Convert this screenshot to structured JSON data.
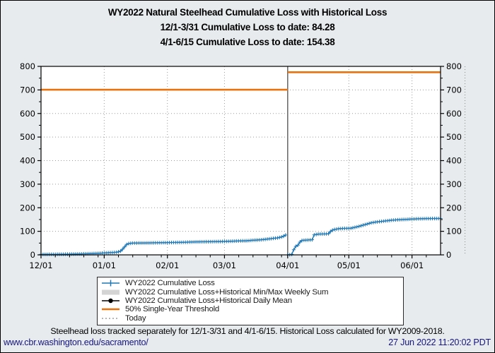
{
  "title": {
    "line1": "WY2022 Natural Steelhead Cumulative Loss with Historical Loss",
    "line2": "12/1-3/31 Cumulative Loss to date: 84.28",
    "line3": "4/1-6/15 Cumulative Loss to date: 154.38"
  },
  "legend": {
    "items": [
      {
        "label": "WY2022 Cumulative Loss",
        "marker": "line-plus-icon"
      },
      {
        "label": "WY2022 Cumulative Loss+Historical Min/Max Weekly Sum",
        "marker": "gray-patch-icon"
      },
      {
        "label": "WY2022 Cumulative Loss+Historical Daily Mean",
        "marker": "line-dot-icon"
      },
      {
        "label": "50% Single-Year Threshold",
        "marker": "orange-line-icon"
      },
      {
        "label": "Today",
        "marker": "dotted-line-icon"
      }
    ]
  },
  "footer": {
    "note": "Steelhead loss tracked separately for 12/1-3/31 and 4/1-6/15. Historical Loss calculated for WY2009-2018.",
    "link": "www.cbr.washington.edu/sacramento/",
    "timestamp": "27 Jun 2022 11:20:02 PDT"
  },
  "colors": {
    "series_blue": "#1f77b4",
    "threshold_orange": "#e8720e",
    "minmax_gray": "#d4d4d4",
    "daily_mean_black": "#000000",
    "today_gray": "#8a8a8a",
    "divider_gray": "#6e6e6e",
    "grid_gray": "#9a9a9a",
    "plot_background": "#ffffff",
    "figure_background": "#e7ebee",
    "link_navy": "#15157d"
  },
  "chart_data": {
    "type": "line",
    "title": "WY2022 Natural Steelhead Cumulative Loss with Historical Loss",
    "xlabel": "",
    "ylabel": "",
    "ylim": [
      0,
      800
    ],
    "yticks": [
      0,
      100,
      200,
      300,
      400,
      500,
      600,
      700,
      800
    ],
    "x_tick_labels": [
      "12/01",
      "01/01",
      "02/01",
      "03/01",
      "04/01",
      "05/01",
      "06/01"
    ],
    "x_range_dates": [
      "12/01",
      "06/15"
    ],
    "grid": true,
    "legend_position": "bottom",
    "series": [
      {
        "name": "WY2022 Cumulative Loss (12/1-3/31)",
        "style": "line+plus",
        "points": [
          [
            "12/01",
            2
          ],
          [
            "12/08",
            2.5
          ],
          [
            "12/15",
            3
          ],
          [
            "12/20",
            4
          ],
          [
            "12/25",
            5
          ],
          [
            "12/29",
            6.5
          ],
          [
            "01/01",
            8
          ],
          [
            "01/05",
            10
          ],
          [
            "01/07",
            11
          ],
          [
            "01/08",
            13
          ],
          [
            "01/09",
            16
          ],
          [
            "01/10",
            24
          ],
          [
            "01/11",
            34
          ],
          [
            "01/12",
            44
          ],
          [
            "01/13",
            48
          ],
          [
            "01/15",
            50
          ],
          [
            "01/22",
            50.5
          ],
          [
            "02/01",
            52
          ],
          [
            "02/08",
            53
          ],
          [
            "02/15",
            55
          ],
          [
            "02/22",
            56
          ],
          [
            "03/01",
            57
          ],
          [
            "03/08",
            59
          ],
          [
            "03/12",
            60
          ],
          [
            "03/15",
            62
          ],
          [
            "03/17",
            63
          ],
          [
            "03/19",
            64
          ],
          [
            "03/21",
            66
          ],
          [
            "03/23",
            68
          ],
          [
            "03/25",
            70
          ],
          [
            "03/27",
            72
          ],
          [
            "03/28",
            74
          ],
          [
            "03/29",
            76
          ],
          [
            "03/30",
            79
          ],
          [
            "03/31",
            84.28
          ]
        ]
      },
      {
        "name": "WY2022 Cumulative Loss (4/1-6/15)",
        "style": "line+plus",
        "points": [
          [
            "04/01",
            0
          ],
          [
            "04/02",
            0.5
          ],
          [
            "04/03",
            2
          ],
          [
            "04/04",
            22
          ],
          [
            "04/05",
            36
          ],
          [
            "04/06",
            41
          ],
          [
            "04/07",
            54
          ],
          [
            "04/08",
            61
          ],
          [
            "04/09",
            62
          ],
          [
            "04/13",
            64
          ],
          [
            "04/14",
            85
          ],
          [
            "04/16",
            88
          ],
          [
            "04/20",
            89
          ],
          [
            "04/21",
            90
          ],
          [
            "04/22",
            99
          ],
          [
            "04/23",
            105
          ],
          [
            "04/24",
            108
          ],
          [
            "04/26",
            111
          ],
          [
            "04/28",
            112
          ],
          [
            "05/02",
            113
          ],
          [
            "05/04",
            117
          ],
          [
            "05/06",
            121
          ],
          [
            "05/08",
            126
          ],
          [
            "05/10",
            131
          ],
          [
            "05/12",
            136
          ],
          [
            "05/14",
            139
          ],
          [
            "05/16",
            141
          ],
          [
            "05/18",
            143
          ],
          [
            "05/20",
            145
          ],
          [
            "05/22",
            147
          ],
          [
            "05/25",
            149
          ],
          [
            "05/28",
            150
          ],
          [
            "06/01",
            152
          ],
          [
            "06/04",
            153
          ],
          [
            "06/08",
            154
          ],
          [
            "06/15",
            154.38
          ]
        ]
      }
    ],
    "thresholds": [
      {
        "name": "50% Single-Year Threshold (12/1-3/31)",
        "value": 701,
        "start": "12/01",
        "end": "04/01"
      },
      {
        "name": "50% Single-Year Threshold (4/1-6/15)",
        "value": 775,
        "start": "04/01",
        "end": "06/15"
      }
    ],
    "period_divider_date": "04/01",
    "today_date": "06/27"
  }
}
